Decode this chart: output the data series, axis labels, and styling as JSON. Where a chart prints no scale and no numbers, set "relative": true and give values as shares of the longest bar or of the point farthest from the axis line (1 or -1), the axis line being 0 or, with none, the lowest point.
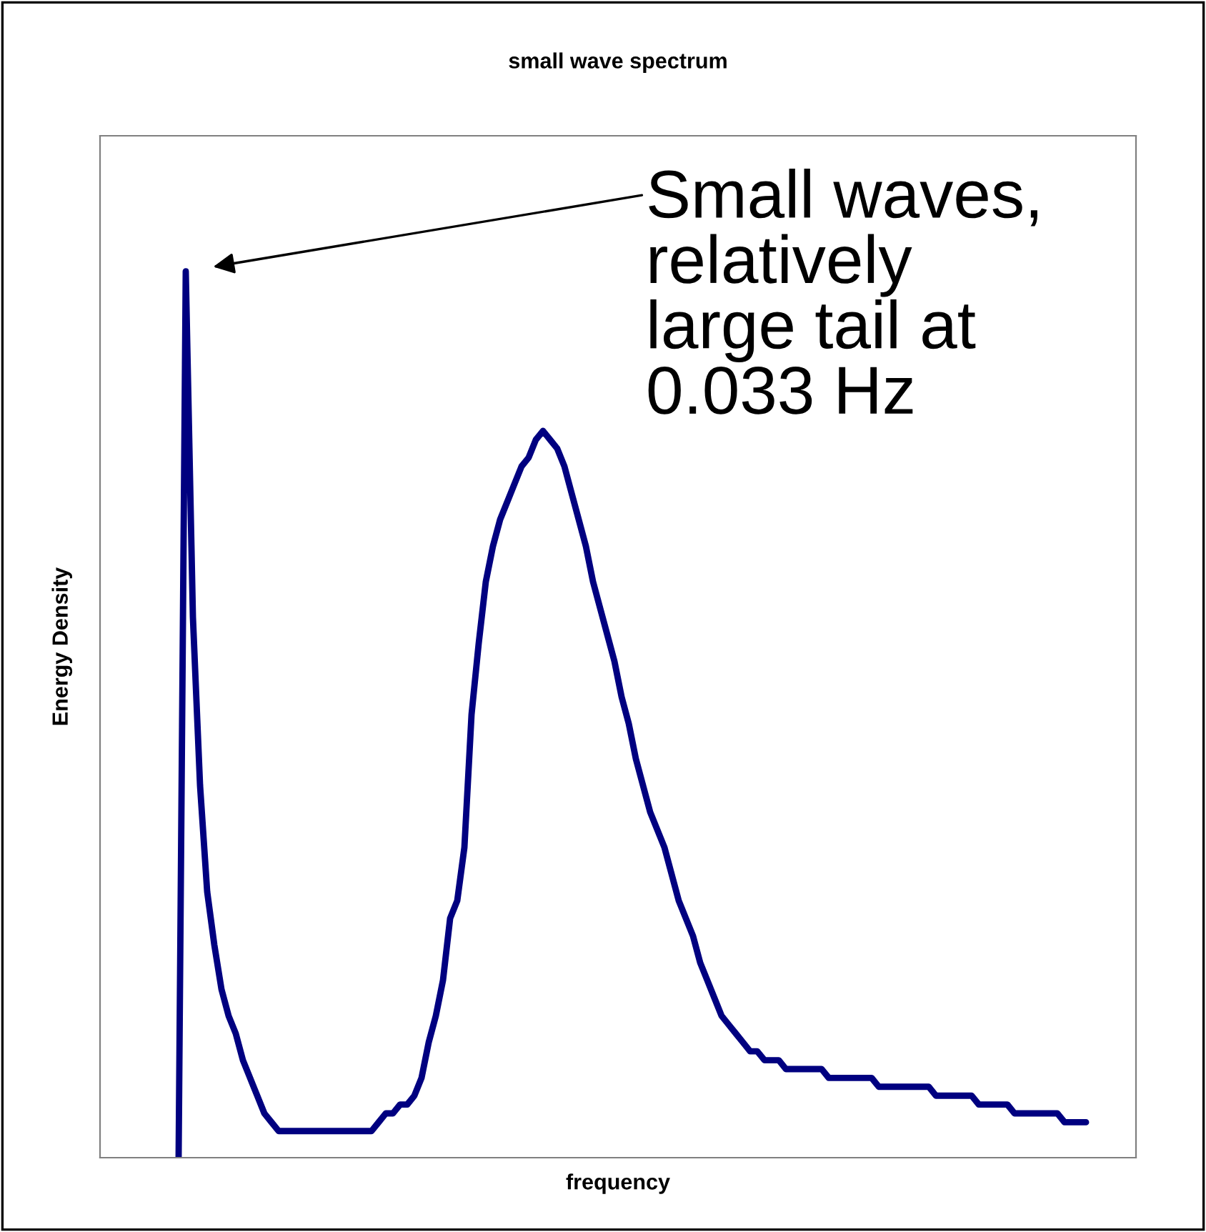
{
  "chart_data": {
    "type": "line",
    "title": "small wave spectrum",
    "xlabel": "frequency",
    "ylabel": "Energy Density",
    "relative": true,
    "marker": "none",
    "line_style": "solid",
    "categories": [
      null,
      null,
      null,
      null,
      null,
      null,
      null,
      null,
      null,
      null,
      null,
      null,
      null,
      null,
      null,
      null,
      null,
      null,
      null,
      null,
      null,
      null,
      null,
      null,
      null,
      null,
      null,
      null,
      null,
      null,
      null,
      null,
      null,
      null,
      null,
      null,
      null,
      null,
      null,
      null,
      null,
      null,
      null,
      null,
      null,
      null,
      null,
      null,
      null,
      null,
      null,
      null,
      null,
      null,
      null,
      null,
      null,
      null,
      null,
      null,
      null,
      null,
      null,
      null,
      null,
      null,
      null,
      null,
      null,
      null,
      null,
      null,
      null,
      null,
      null,
      null,
      null,
      null,
      null,
      null,
      null,
      null,
      null,
      null,
      null,
      null,
      null,
      null,
      null,
      null,
      null,
      null,
      null,
      null,
      null,
      null,
      null,
      null,
      null,
      null,
      null,
      null,
      null,
      null,
      null,
      null,
      null,
      null,
      null,
      null,
      null,
      null,
      null,
      null,
      null,
      null,
      null,
      null,
      null,
      null,
      null,
      null,
      null,
      null,
      null,
      null,
      null,
      null
    ],
    "series": [
      {
        "color": "#000080",
        "values": [
          0,
          1,
          0.61,
          0.42,
          0.3,
          0.24,
          0.19,
          0.16,
          0.14,
          0.11,
          0.09,
          0.07,
          0.05,
          0.04,
          0.03,
          0.03,
          0.03,
          0.03,
          0.03,
          0.03,
          0.03,
          0.03,
          0.03,
          0.03,
          0.03,
          0.03,
          0.03,
          0.03,
          0.04,
          0.05,
          0.05,
          0.06,
          0.06,
          0.07,
          0.09,
          0.13,
          0.16,
          0.2,
          0.27,
          0.29,
          0.35,
          0.5,
          0.58,
          0.65,
          0.69,
          0.72,
          0.74,
          0.76,
          0.78,
          0.79,
          0.81,
          0.82,
          0.81,
          0.8,
          0.78,
          0.75,
          0.72,
          0.69,
          0.65,
          0.62,
          0.59,
          0.56,
          0.52,
          0.49,
          0.45,
          0.42,
          0.39,
          0.37,
          0.35,
          0.32,
          0.29,
          0.27,
          0.25,
          0.22,
          0.2,
          0.18,
          0.16,
          0.15,
          0.14,
          0.13,
          0.12,
          0.12,
          0.11,
          0.11,
          0.11,
          0.1,
          0.1,
          0.1,
          0.1,
          0.1,
          0.1,
          0.09,
          0.09,
          0.09,
          0.09,
          0.09,
          0.09,
          0.09,
          0.08,
          0.08,
          0.08,
          0.08,
          0.08,
          0.08,
          0.08,
          0.08,
          0.07,
          0.07,
          0.07,
          0.07,
          0.07,
          0.07,
          0.06,
          0.06,
          0.06,
          0.06,
          0.06,
          0.05,
          0.05,
          0.05,
          0.05,
          0.05,
          0.05,
          0.05,
          0.04,
          0.04,
          0.04,
          0.04
        ]
      }
    ],
    "annotations": [
      "Small waves,\nrelatively\nlarge tail at\n0.033 Hz"
    ]
  }
}
